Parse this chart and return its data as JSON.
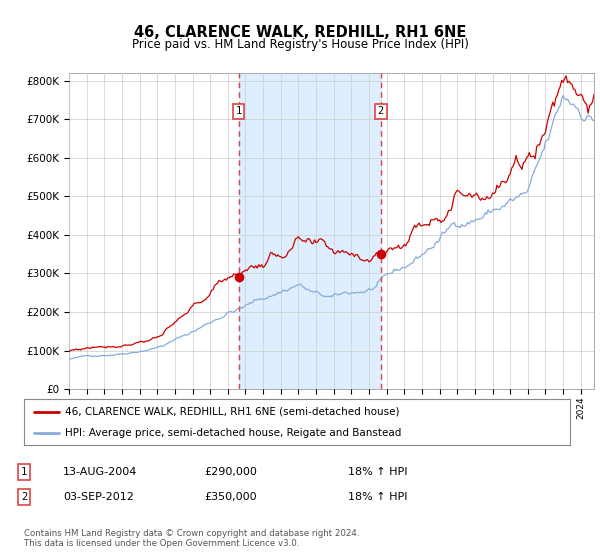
{
  "title": "46, CLARENCE WALK, REDHILL, RH1 6NE",
  "subtitle": "Price paid vs. HM Land Registry's House Price Index (HPI)",
  "legend_line1": "46, CLARENCE WALK, REDHILL, RH1 6NE (semi-detached house)",
  "legend_line2": "HPI: Average price, semi-detached house, Reigate and Banstead",
  "sale1_label": "1",
  "sale1_date": "13-AUG-2004",
  "sale1_price": "£290,000",
  "sale1_hpi": "18% ↑ HPI",
  "sale2_label": "2",
  "sale2_date": "03-SEP-2012",
  "sale2_price": "£350,000",
  "sale2_hpi": "18% ↑ HPI",
  "footer": "Contains HM Land Registry data © Crown copyright and database right 2024.\nThis data is licensed under the Open Government Licence v3.0.",
  "ylim": [
    0,
    820000
  ],
  "yticks": [
    0,
    100000,
    200000,
    300000,
    400000,
    500000,
    600000,
    700000,
    800000
  ],
  "ytick_labels": [
    "£0",
    "£100K",
    "£200K",
    "£300K",
    "£400K",
    "£500K",
    "£600K",
    "£700K",
    "£800K"
  ],
  "sale1_x": 2004.617,
  "sale1_y": 290000,
  "sale2_x": 2012.671,
  "sale2_y": 350000,
  "red_color": "#cc0000",
  "blue_color": "#88aadd",
  "shade_color": "#ddeeff",
  "plot_bg": "#ffffff",
  "grid_color": "#cccccc",
  "vline_color": "#dd4444",
  "xlim_start": 1995.0,
  "xlim_end": 2024.75
}
